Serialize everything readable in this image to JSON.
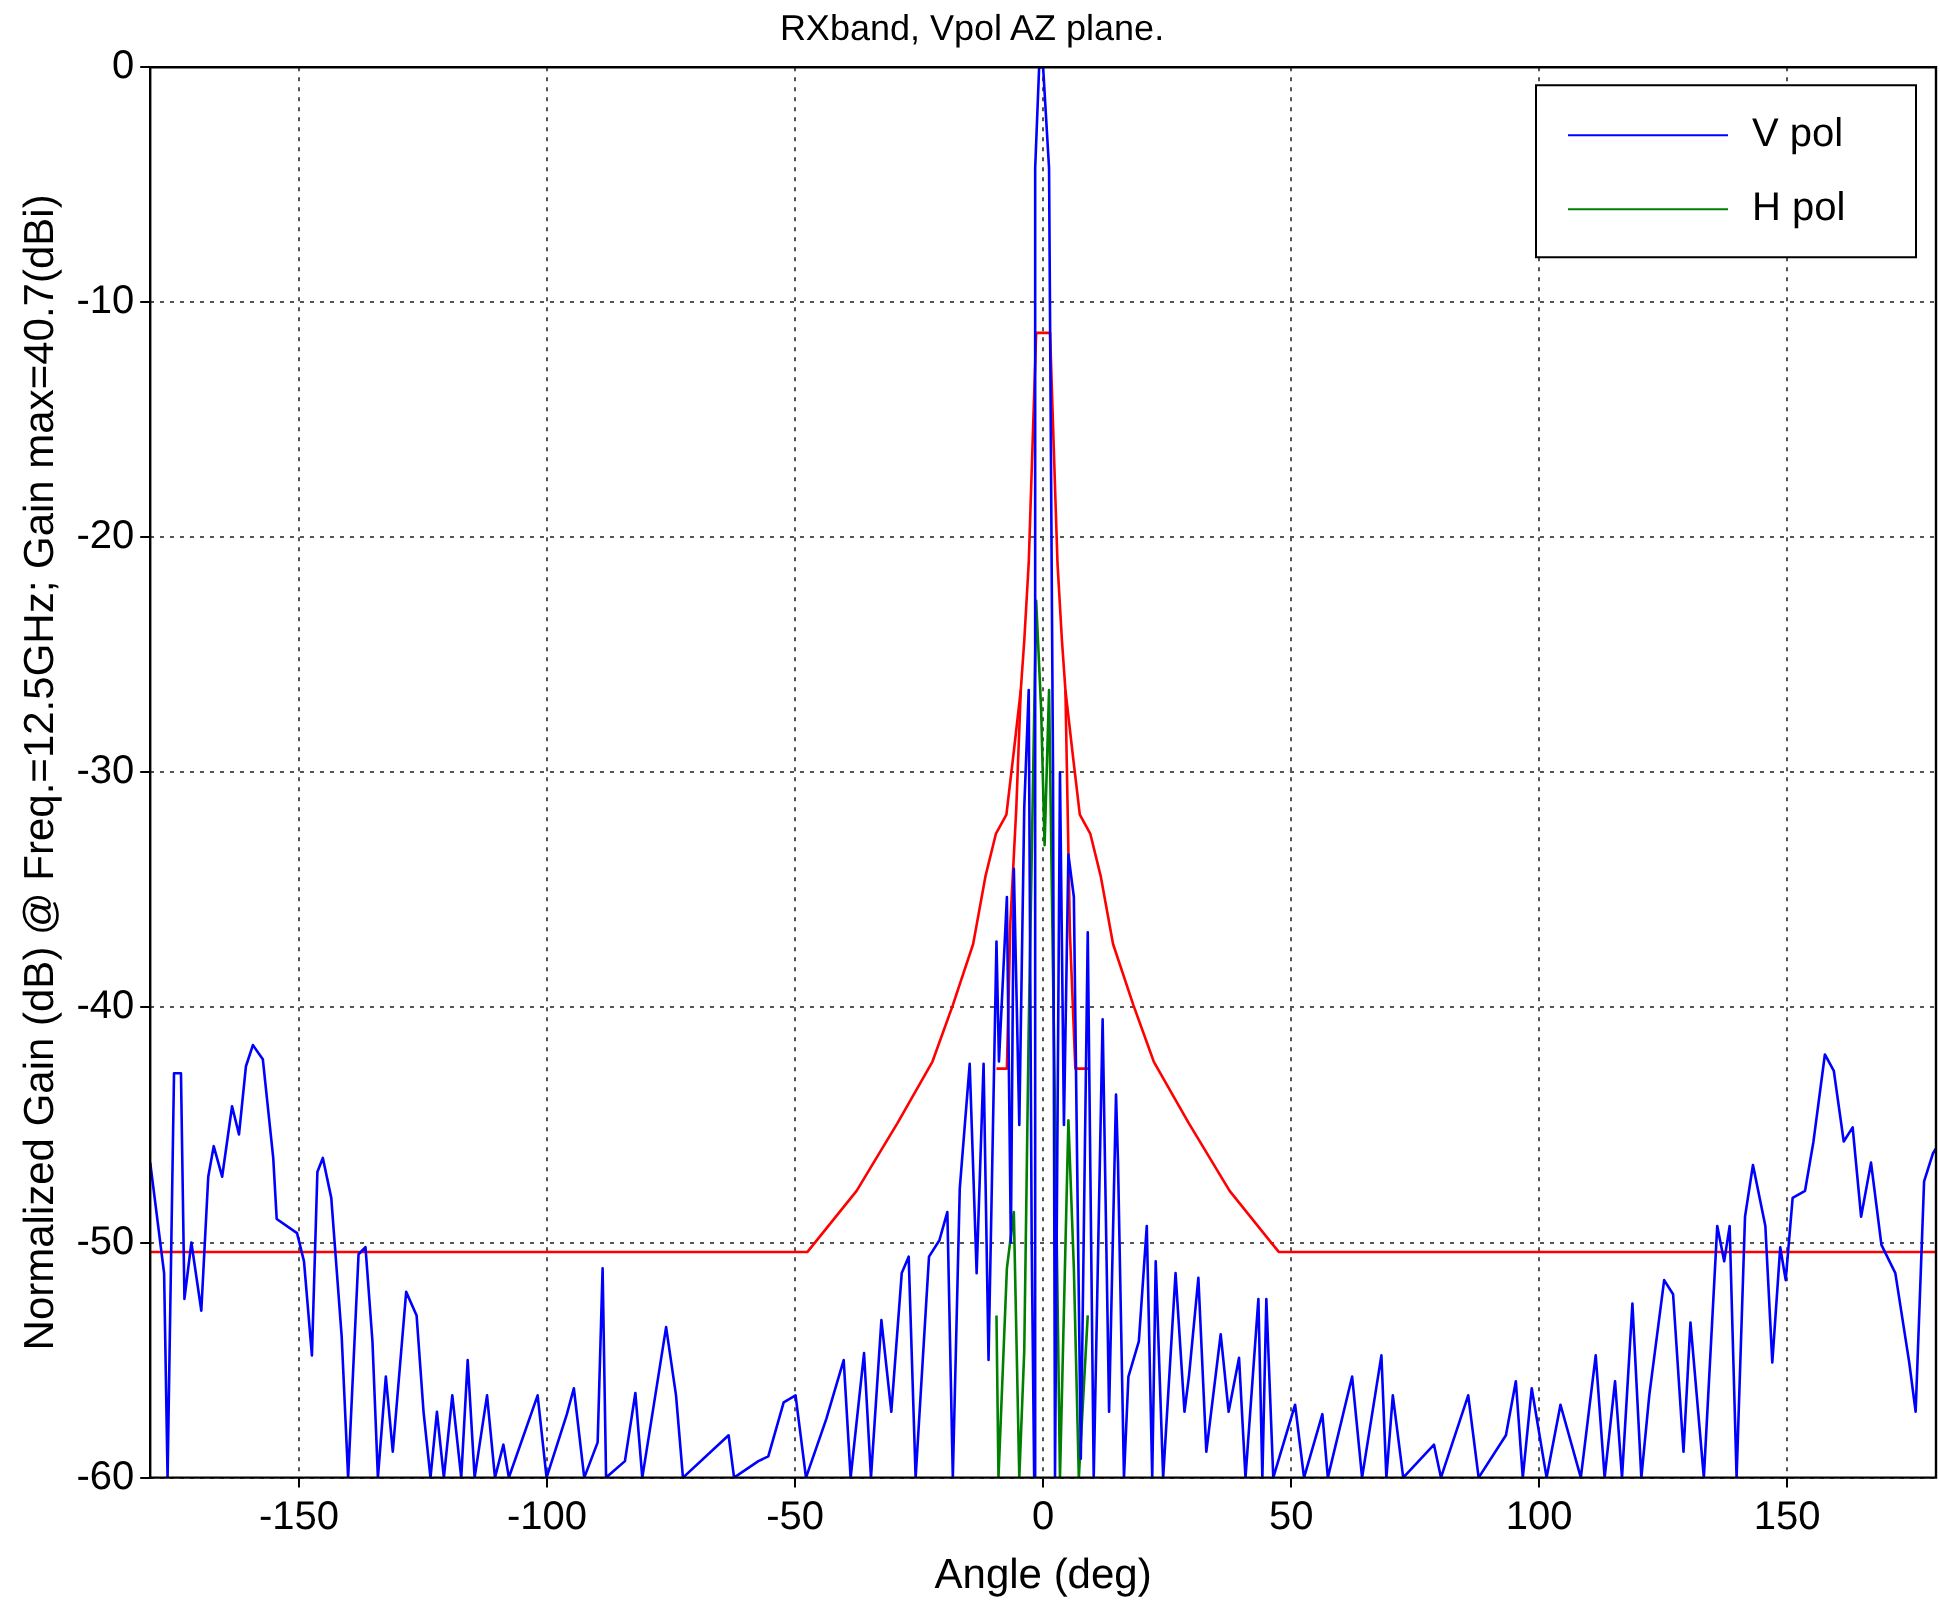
{
  "chart_data": {
    "type": "line",
    "title": "RXband, Vpol AZ plane.",
    "xlabel": "Angle (deg)",
    "ylabel": "Normalized Gain (dB) @ Freq.=12.5GHz; Gain max=40.7(dBi)",
    "xlim": [
      -180,
      180
    ],
    "xticks": [
      -150,
      -100,
      -50,
      0,
      50,
      100,
      150
    ],
    "ylim": [
      -60,
      0
    ],
    "yticks": [
      -60,
      -50,
      -40,
      -30,
      -20,
      -10,
      0
    ],
    "grid": true,
    "legend": "top right",
    "series": [
      {
        "name": "V pol",
        "color": "#0000ff",
        "x": [
          -180,
          -177.2,
          -176.5,
          -175.2,
          -173.8,
          -173.1,
          -171.7,
          -169.7,
          -168.3,
          -167.2,
          -165.5,
          -163.5,
          -162.1,
          -160.7,
          -159.3,
          -157.3,
          -155.2,
          -154.5,
          -150.4,
          -149,
          -147.4,
          -146.3,
          -145.2,
          -143.5,
          -141.4,
          -140.1,
          -138,
          -136.6,
          -135.2,
          -134.1,
          -132.5,
          -131.1,
          -128.4,
          -126.3,
          -124.9,
          -123.5,
          -122.2,
          -120.8,
          -119.1,
          -117.3,
          -116,
          -114.6,
          -112.1,
          -110.5,
          -108.8,
          -107.7,
          -101.9,
          -100.1,
          -96,
          -94.6,
          -92.5,
          -89.8,
          -88.8,
          -88.1,
          -84.3,
          -82.2,
          -80.8,
          -76,
          -74,
          -72.6,
          -63.4,
          -62.3,
          -57.4,
          -55.4,
          -52.3,
          -49.9,
          -47.8,
          -43.7,
          -40.2,
          -38.8,
          -36.1,
          -34.7,
          -32.6,
          -30.6,
          -28.5,
          -27.1,
          -25.7,
          -23,
          -20.9,
          -19.3,
          -18.2,
          -16.8,
          -14.8,
          -13.4,
          -12,
          -11,
          -9.4,
          -8.9,
          -7.3,
          -6.5,
          -5.9,
          -4.8,
          -3.8,
          -2.9,
          -2.3,
          -1.8,
          -1.6,
          -0.8,
          0,
          1.2,
          2,
          2.4,
          3.4,
          4.2,
          5.1,
          6.2,
          7.6,
          9,
          10.2,
          12,
          13.3,
          14.7,
          15.1,
          16.3,
          17.2,
          19.3,
          20.9,
          22,
          22.7,
          24.2,
          26.7,
          28.5,
          29.4,
          31.3,
          32.9,
          35.8,
          37.4,
          39.5,
          40.8,
          43.4,
          44.2,
          45,
          46.4,
          50.8,
          52.6,
          56.3,
          57.4,
          62.3,
          64.3,
          68.2,
          69.2,
          70.5,
          72.6,
          78.8,
          80.2,
          85.7,
          87.8,
          93.3,
          95.3,
          96.7,
          98.5,
          101.5,
          104.3,
          108.4,
          111.4,
          113.2,
          115.3,
          116.7,
          118.8,
          120.6,
          122.2,
          125.2,
          127,
          129.1,
          130.5,
          133.2,
          135.9,
          137.3,
          138.4,
          139.8,
          141.5,
          143.1,
          145.6,
          147,
          148.6,
          149.7,
          151.1,
          153.6,
          155.3,
          157.6,
          159.4,
          161.4,
          163.2,
          164.9,
          166.9,
          169,
          171.8,
          174.6,
          175.9,
          177.6,
          179.4,
          180
        ],
        "values": [
          -46.6,
          -51.3,
          -60,
          -42.8,
          -42.8,
          -52.4,
          -50,
          -52.9,
          -47.2,
          -45.9,
          -47.2,
          -44.2,
          -45.4,
          -42.5,
          -41.6,
          -42.2,
          -46.4,
          -49,
          -49.6,
          -50.8,
          -54.8,
          -47,
          -46.4,
          -48.1,
          -54,
          -60,
          -50.5,
          -50.2,
          -54.2,
          -60,
          -55.7,
          -58.9,
          -52.1,
          -53.1,
          -57.2,
          -60,
          -57.2,
          -60,
          -56.5,
          -60,
          -55,
          -60,
          -56.5,
          -60,
          -58.6,
          -60,
          -56.5,
          -60,
          -57.3,
          -56.2,
          -60,
          -58.5,
          -51.1,
          -60,
          -59.3,
          -56.4,
          -60,
          -53.6,
          -56.5,
          -60,
          -58.2,
          -60,
          -59.3,
          -59.1,
          -56.8,
          -56.5,
          -60,
          -57.5,
          -55,
          -60,
          -54.7,
          -60,
          -53.3,
          -57.2,
          -51.3,
          -50.6,
          -60,
          -50.6,
          -49.9,
          -48.7,
          -60,
          -47.7,
          -42.4,
          -51.3,
          -42.4,
          -55,
          -37.2,
          -42.3,
          -35.3,
          -50,
          -34.1,
          -45,
          -31.5,
          -26.5,
          -50,
          -60,
          -4.3,
          0,
          0,
          -4.3,
          -30,
          -60,
          -30,
          -45,
          -33.5,
          -35.3,
          -59.2,
          -36.8,
          -60,
          -40.5,
          -57.2,
          -43.7,
          -46.6,
          -60,
          -55.7,
          -54.2,
          -49.3,
          -60,
          -50.8,
          -60,
          -51.3,
          -57.2,
          -55.7,
          -51.5,
          -58.9,
          -53.9,
          -57.2,
          -54.9,
          -60,
          -52.4,
          -60,
          -52.4,
          -60,
          -56.9,
          -60,
          -57.3,
          -60,
          -55.7,
          -60,
          -54.8,
          -60,
          -56.5,
          -60,
          -58.6,
          -60,
          -56.5,
          -60,
          -58.2,
          -55.9,
          -60,
          -56.2,
          -60,
          -56.9,
          -60,
          -54.8,
          -60,
          -55.9,
          -60,
          -52.6,
          -60,
          -56.5,
          -51.6,
          -52.2,
          -58.9,
          -53.4,
          -60,
          -49.3,
          -50.8,
          -49.3,
          -60,
          -48.9,
          -46.7,
          -49.3,
          -55.1,
          -50.2,
          -51.6,
          -48.1,
          -47.8,
          -45.7,
          -42,
          -42.7,
          -45.7,
          -45.1,
          -48.9,
          -46.6,
          -50.1,
          -51.3,
          -55.1,
          -57.2,
          -47.4,
          -46.2,
          -46
        ]
      },
      {
        "name": "H pol",
        "color": "#008000",
        "x": [
          -9.4,
          -9,
          -7.3,
          -5.9,
          -4.8,
          -3.8,
          -2.9,
          -1.4,
          -0.4,
          0.3,
          1.2,
          2.4,
          3.4,
          5.1,
          6.2,
          7.2,
          9
        ],
        "values": [
          -53.1,
          -60,
          -51.1,
          -48.7,
          -60,
          -54.6,
          -40.9,
          -22.7,
          -27.3,
          -33.1,
          -26.5,
          -44.5,
          -60,
          -44.8,
          -51.1,
          -60,
          -53.1
        ]
      },
      {
        "color": "#ff0000",
        "x": [
          -180,
          -47.5,
          -37.6,
          -29.3,
          -22.3,
          -18.2,
          -14.1,
          -11.6,
          -9.5,
          -7.4,
          -5.9,
          -4.5,
          -3.8,
          -2.9,
          -1.4,
          1.4,
          2.9,
          3.8,
          4.5,
          5.9,
          7.4,
          9.5,
          11.6,
          14.1,
          18.2,
          22.3,
          29.3,
          37.6,
          47.5,
          180
        ],
        "values": [
          -50.4,
          -50.4,
          -47.8,
          -44.9,
          -42.3,
          -39.9,
          -37.3,
          -34.4,
          -32.6,
          -31.8,
          -29.1,
          -26.5,
          -24.4,
          -21.1,
          -11.3,
          -11.3,
          -21.1,
          -24.4,
          -26.5,
          -29.1,
          -31.8,
          -32.6,
          -34.4,
          -37.3,
          -39.9,
          -42.3,
          -44.9,
          -47.8,
          -50.4,
          -50.4
        ]
      },
      {
        "color": "#ff0000",
        "x": [
          -9.4,
          -7.3,
          -6.6,
          -5.4,
          -4.5
        ],
        "values": [
          -42.6,
          -42.6,
          -36.4,
          -31.5,
          -26.5
        ]
      },
      {
        "color": "#ff0000",
        "x": [
          4.5,
          5.4,
          6.5,
          9.1
        ],
        "values": [
          -26.5,
          -36.8,
          -42.6,
          -42.6
        ]
      }
    ]
  }
}
